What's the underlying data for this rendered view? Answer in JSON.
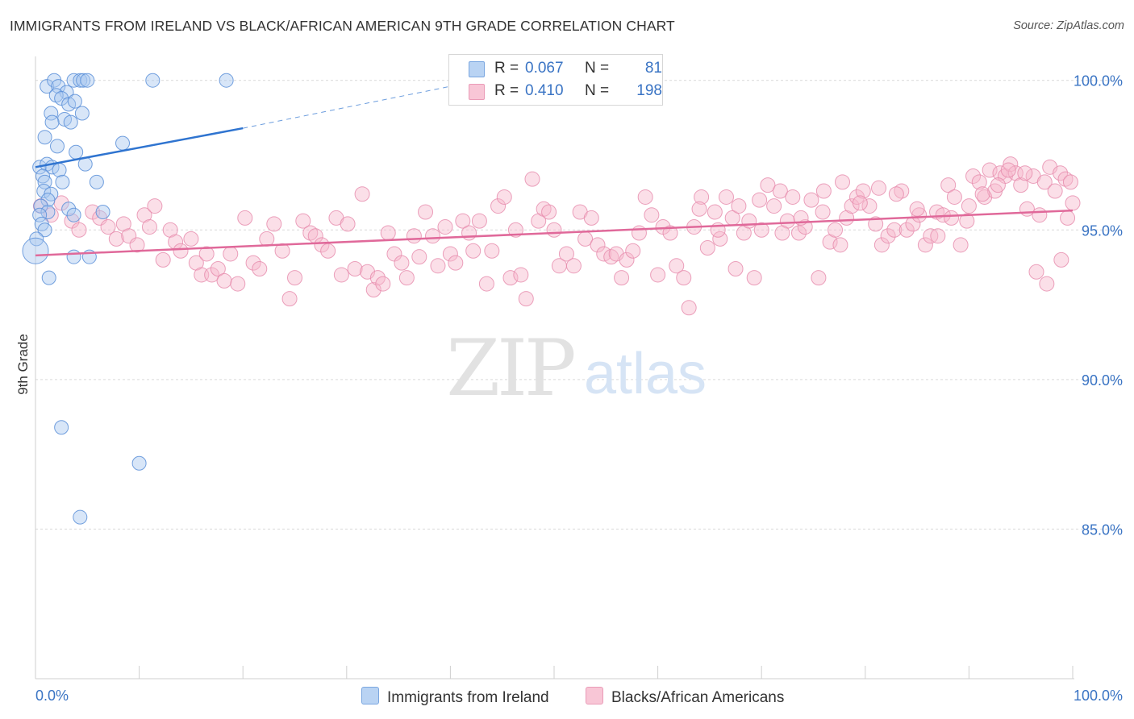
{
  "title": "IMMIGRANTS FROM IRELAND VS BLACK/AFRICAN AMERICAN 9TH GRADE CORRELATION CHART",
  "source": "Source: ZipAtlas.com",
  "watermark": {
    "zip": "ZIP",
    "atlas": "atlas"
  },
  "legend": {
    "rows": [
      {
        "r_label": "R =",
        "r_value": "0.067",
        "n_label": "N =",
        "n_value": "81"
      },
      {
        "r_label": "R =",
        "r_value": "0.410",
        "n_label": "N =",
        "n_value": "198"
      }
    ]
  },
  "chart_data": {
    "type": "scatter",
    "xlabel": "",
    "ylabel": "9th Grade",
    "xlim": [
      0,
      100
    ],
    "ylim": [
      80.0,
      100.8
    ],
    "x_tick_labels": {
      "left": "0.0%",
      "right": "100.0%"
    },
    "y_tick_labels": [
      "100.0%",
      "95.0%",
      "90.0%",
      "85.0%"
    ],
    "y_ticks": [
      100,
      95,
      90,
      85
    ],
    "grid": "horizontal dashed",
    "legend_position": "top-center",
    "colors": {
      "ireland_fill": "#a9c8f0",
      "ireland_stroke": "#5b8fd8",
      "ireland_line": "#2f74d0",
      "black_fill": "#f6b8cc",
      "black_stroke": "#e68aab",
      "black_line": "#e0699a",
      "value_text": "#3a74c4"
    },
    "series": [
      {
        "name": "Immigrants from Ireland",
        "trend": {
          "x0": 0,
          "y0": 97.1,
          "x1": 20,
          "y1": 98.4,
          "dashed_to_x": 40,
          "dashed_to_y": 99.8
        },
        "points": [
          [
            1.1,
            99.8
          ],
          [
            1.8,
            100
          ],
          [
            2.2,
            99.8
          ],
          [
            3.0,
            99.6
          ],
          [
            3.7,
            100
          ],
          [
            4.3,
            100
          ],
          [
            4.6,
            100
          ],
          [
            5.0,
            100
          ],
          [
            11.3,
            100
          ],
          [
            18.4,
            100
          ],
          [
            2.0,
            99.5
          ],
          [
            2.5,
            99.4
          ],
          [
            3.2,
            99.2
          ],
          [
            3.8,
            99.3
          ],
          [
            4.5,
            98.9
          ],
          [
            1.5,
            98.9
          ],
          [
            2.8,
            98.7
          ],
          [
            1.6,
            98.6
          ],
          [
            3.4,
            98.6
          ],
          [
            0.9,
            98.1
          ],
          [
            2.1,
            97.8
          ],
          [
            8.4,
            97.9
          ],
          [
            3.9,
            97.6
          ],
          [
            0.4,
            97.1
          ],
          [
            1.1,
            97.2
          ],
          [
            1.6,
            97.1
          ],
          [
            2.3,
            97.0
          ],
          [
            4.8,
            97.2
          ],
          [
            0.7,
            96.8
          ],
          [
            0.9,
            96.6
          ],
          [
            2.6,
            96.6
          ],
          [
            5.9,
            96.6
          ],
          [
            0.8,
            96.3
          ],
          [
            1.5,
            96.2
          ],
          [
            1.2,
            96.0
          ],
          [
            0.5,
            95.8
          ],
          [
            3.2,
            95.7
          ],
          [
            1.2,
            95.6
          ],
          [
            0.4,
            95.5
          ],
          [
            3.7,
            95.5
          ],
          [
            6.5,
            95.6
          ],
          [
            0.6,
            95.2
          ],
          [
            0.9,
            95.0
          ],
          [
            0.1,
            94.7
          ],
          [
            0.0,
            94.3
          ],
          [
            3.7,
            94.1
          ],
          [
            5.2,
            94.1
          ],
          [
            1.3,
            93.4
          ],
          [
            2.5,
            88.4
          ],
          [
            10.0,
            87.2
          ],
          [
            4.3,
            85.4
          ]
        ]
      },
      {
        "name": "Blacks/African Americans",
        "trend": {
          "x0": 0,
          "y0": 94.15,
          "x1": 100,
          "y1": 95.65
        },
        "points": [
          [
            0.5,
            95.8
          ],
          [
            1.5,
            95.5
          ],
          [
            2.5,
            95.9
          ],
          [
            3.5,
            95.3
          ],
          [
            4.2,
            95.0
          ],
          [
            5.5,
            95.6
          ],
          [
            6.2,
            95.4
          ],
          [
            7.0,
            95.1
          ],
          [
            7.8,
            94.7
          ],
          [
            8.5,
            95.2
          ],
          [
            9.0,
            94.8
          ],
          [
            9.8,
            94.5
          ],
          [
            10.5,
            95.5
          ],
          [
            11.0,
            95.1
          ],
          [
            11.5,
            95.8
          ],
          [
            12.3,
            94.0
          ],
          [
            13.0,
            95.0
          ],
          [
            13.5,
            94.6
          ],
          [
            14.0,
            94.3
          ],
          [
            15.0,
            94.7
          ],
          [
            15.5,
            93.9
          ],
          [
            16.0,
            93.5
          ],
          [
            16.5,
            94.2
          ],
          [
            17.0,
            93.5
          ],
          [
            17.6,
            93.7
          ],
          [
            18.2,
            93.3
          ],
          [
            18.8,
            94.2
          ],
          [
            19.5,
            93.2
          ],
          [
            20.2,
            95.4
          ],
          [
            21.0,
            93.9
          ],
          [
            21.6,
            93.7
          ],
          [
            22.3,
            94.7
          ],
          [
            23.0,
            95.2
          ],
          [
            23.8,
            94.3
          ],
          [
            24.5,
            92.7
          ],
          [
            25.0,
            93.4
          ],
          [
            25.8,
            95.3
          ],
          [
            26.5,
            94.9
          ],
          [
            27.0,
            94.8
          ],
          [
            27.6,
            94.5
          ],
          [
            28.2,
            94.3
          ],
          [
            29.0,
            95.4
          ],
          [
            29.5,
            93.5
          ],
          [
            30.1,
            95.2
          ],
          [
            30.8,
            93.7
          ],
          [
            31.5,
            96.2
          ],
          [
            32.0,
            93.6
          ],
          [
            32.6,
            93.0
          ],
          [
            33.0,
            93.4
          ],
          [
            33.5,
            93.2
          ],
          [
            34.0,
            94.9
          ],
          [
            34.6,
            94.2
          ],
          [
            35.3,
            93.9
          ],
          [
            35.8,
            93.4
          ],
          [
            36.5,
            94.8
          ],
          [
            37.0,
            94.1
          ],
          [
            37.6,
            95.6
          ],
          [
            38.3,
            94.8
          ],
          [
            38.8,
            93.8
          ],
          [
            39.5,
            95.1
          ],
          [
            40.0,
            94.2
          ],
          [
            40.5,
            93.9
          ],
          [
            41.2,
            95.3
          ],
          [
            41.8,
            94.9
          ],
          [
            42.2,
            94.3
          ],
          [
            42.8,
            95.3
          ],
          [
            43.5,
            93.2
          ],
          [
            44.0,
            94.3
          ],
          [
            44.6,
            95.8
          ],
          [
            45.2,
            96.1
          ],
          [
            45.8,
            93.4
          ],
          [
            46.3,
            95.0
          ],
          [
            46.8,
            93.5
          ],
          [
            47.3,
            92.7
          ],
          [
            47.9,
            96.7
          ],
          [
            48.5,
            95.3
          ],
          [
            49.0,
            95.7
          ],
          [
            49.5,
            95.6
          ],
          [
            50.0,
            95.0
          ],
          [
            50.5,
            93.8
          ],
          [
            51.2,
            94.2
          ],
          [
            51.9,
            93.8
          ],
          [
            52.5,
            95.6
          ],
          [
            53.0,
            94.7
          ],
          [
            53.6,
            95.4
          ],
          [
            54.2,
            94.5
          ],
          [
            54.8,
            94.2
          ],
          [
            55.5,
            94.1
          ],
          [
            56.0,
            94.2
          ],
          [
            56.5,
            93.4
          ],
          [
            57.0,
            94.0
          ],
          [
            57.6,
            94.3
          ],
          [
            58.2,
            94.9
          ],
          [
            58.8,
            96.1
          ],
          [
            59.4,
            95.5
          ],
          [
            60.0,
            93.5
          ],
          [
            60.5,
            95.1
          ],
          [
            61.2,
            94.9
          ],
          [
            61.8,
            93.8
          ],
          [
            62.5,
            93.4
          ],
          [
            63.0,
            92.4
          ],
          [
            63.5,
            95.1
          ],
          [
            64.2,
            96.1
          ],
          [
            64.8,
            94.4
          ],
          [
            65.5,
            95.6
          ],
          [
            66.0,
            94.7
          ],
          [
            66.6,
            96.1
          ],
          [
            67.2,
            95.4
          ],
          [
            67.8,
            95.8
          ],
          [
            68.3,
            94.9
          ],
          [
            68.8,
            95.3
          ],
          [
            69.3,
            93.4
          ],
          [
            70.0,
            95.0
          ],
          [
            70.6,
            96.5
          ],
          [
            71.2,
            95.8
          ],
          [
            71.8,
            96.3
          ],
          [
            72.5,
            95.3
          ],
          [
            73.0,
            96.1
          ],
          [
            73.6,
            94.9
          ],
          [
            74.2,
            95.1
          ],
          [
            74.8,
            96.0
          ],
          [
            75.5,
            93.4
          ],
          [
            76.0,
            96.3
          ],
          [
            76.6,
            94.6
          ],
          [
            77.1,
            95.0
          ],
          [
            77.6,
            94.5
          ],
          [
            78.2,
            95.4
          ],
          [
            78.7,
            95.8
          ],
          [
            79.2,
            96.1
          ],
          [
            79.8,
            96.3
          ],
          [
            80.4,
            95.8
          ],
          [
            81.0,
            95.2
          ],
          [
            81.6,
            94.5
          ],
          [
            82.2,
            94.8
          ],
          [
            82.8,
            95.0
          ],
          [
            83.5,
            96.3
          ],
          [
            84.0,
            95.0
          ],
          [
            84.6,
            95.2
          ],
          [
            85.2,
            95.5
          ],
          [
            85.8,
            94.5
          ],
          [
            86.3,
            94.8
          ],
          [
            86.9,
            95.6
          ],
          [
            87.5,
            95.5
          ],
          [
            88.0,
            96.5
          ],
          [
            88.6,
            96.1
          ],
          [
            89.2,
            94.5
          ],
          [
            89.8,
            95.3
          ],
          [
            90.4,
            96.8
          ],
          [
            91.0,
            96.6
          ],
          [
            91.5,
            96.1
          ],
          [
            92.0,
            97.0
          ],
          [
            92.5,
            96.3
          ],
          [
            93.0,
            96.9
          ],
          [
            93.5,
            96.8
          ],
          [
            94.0,
            97.2
          ],
          [
            94.5,
            96.9
          ],
          [
            95.0,
            96.5
          ],
          [
            95.6,
            95.7
          ],
          [
            96.2,
            96.8
          ],
          [
            96.8,
            95.5
          ],
          [
            97.3,
            96.6
          ],
          [
            97.8,
            97.1
          ],
          [
            98.3,
            96.3
          ],
          [
            98.8,
            96.9
          ],
          [
            99.3,
            96.7
          ],
          [
            99.8,
            96.6
          ],
          [
            100.0,
            95.9
          ],
          [
            99.5,
            95.4
          ],
          [
            98.9,
            94.0
          ],
          [
            97.5,
            93.2
          ],
          [
            96.5,
            93.6
          ],
          [
            95.4,
            96.9
          ],
          [
            93.8,
            97.0
          ],
          [
            92.8,
            96.5
          ],
          [
            91.3,
            96.2
          ],
          [
            90.0,
            95.8
          ],
          [
            88.3,
            95.4
          ],
          [
            87.0,
            94.8
          ],
          [
            85.0,
            95.7
          ],
          [
            83.0,
            96.2
          ],
          [
            81.3,
            96.4
          ],
          [
            79.5,
            95.9
          ],
          [
            77.8,
            96.6
          ],
          [
            75.9,
            95.6
          ],
          [
            73.8,
            95.4
          ],
          [
            72.0,
            94.9
          ],
          [
            69.8,
            96.0
          ],
          [
            67.5,
            93.7
          ],
          [
            65.8,
            95.0
          ],
          [
            64.0,
            95.7
          ]
        ]
      }
    ]
  },
  "bottom_legend": [
    "Immigrants from Ireland",
    "Blacks/African Americans"
  ]
}
